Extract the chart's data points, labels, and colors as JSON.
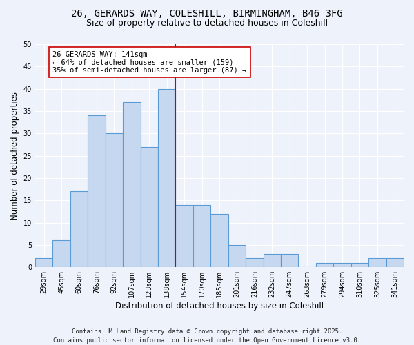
{
  "title1": "26, GERARDS WAY, COLESHILL, BIRMINGHAM, B46 3FG",
  "title2": "Size of property relative to detached houses in Coleshill",
  "xlabel": "Distribution of detached houses by size in Coleshill",
  "ylabel": "Number of detached properties",
  "bar_labels": [
    "29sqm",
    "45sqm",
    "60sqm",
    "76sqm",
    "92sqm",
    "107sqm",
    "123sqm",
    "138sqm",
    "154sqm",
    "170sqm",
    "185sqm",
    "201sqm",
    "216sqm",
    "232sqm",
    "247sqm",
    "263sqm",
    "279sqm",
    "294sqm",
    "310sqm",
    "325sqm",
    "341sqm"
  ],
  "bar_values": [
    2,
    6,
    17,
    34,
    30,
    37,
    27,
    40,
    14,
    14,
    12,
    5,
    2,
    3,
    3,
    0,
    1,
    1,
    1,
    2,
    2
  ],
  "bar_color": "#c5d8f0",
  "bar_edgecolor": "#5b9bd5",
  "vline_x": 7.5,
  "vline_color": "#cc0000",
  "annotation_text": "26 GERARDS WAY: 141sqm\n← 64% of detached houses are smaller (159)\n35% of semi-detached houses are larger (87) →",
  "annotation_box_color": "#cc0000",
  "annotation_fontsize": 7.5,
  "ylim": [
    0,
    50
  ],
  "yticks": [
    0,
    5,
    10,
    15,
    20,
    25,
    30,
    35,
    40,
    45,
    50
  ],
  "background_color": "#eef2fb",
  "plot_bg_color": "#eef2fb",
  "footer": "Contains HM Land Registry data © Crown copyright and database right 2025.\nContains public sector information licensed under the Open Government Licence v3.0.",
  "footer_fontsize": 6.5,
  "title1_fontsize": 10,
  "title2_fontsize": 9,
  "xlabel_fontsize": 8.5,
  "ylabel_fontsize": 8.5,
  "tick_fontsize": 7
}
